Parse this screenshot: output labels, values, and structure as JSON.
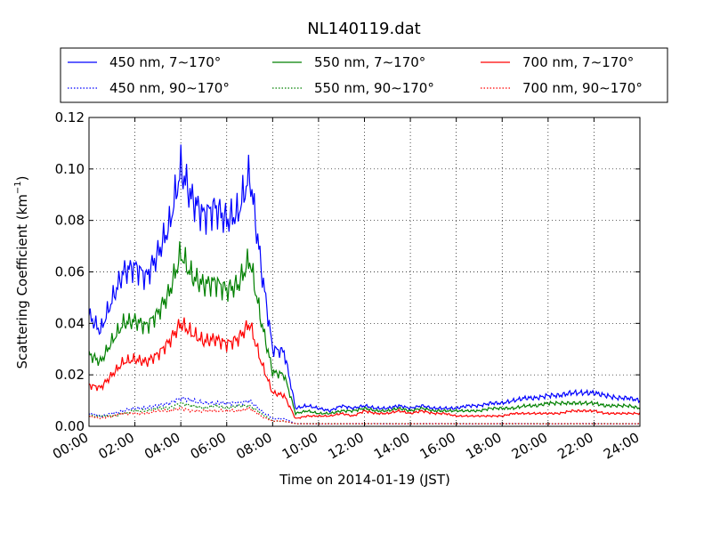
{
  "chart_data": {
    "type": "line",
    "title": "NL140119.dat",
    "xlabel": "Time on 2014-01-19 (JST)",
    "ylabel": "Scattering Coefficient (km",
    "ylabel_sup": "−1",
    "ylabel_close": ")",
    "xlim": [
      0,
      24
    ],
    "ylim": [
      0,
      0.12
    ],
    "grid": true,
    "legend_placement": "top",
    "x_ticks": [
      0,
      2,
      4,
      6,
      8,
      10,
      12,
      14,
      16,
      18,
      20,
      22,
      24
    ],
    "x_tick_labels": [
      "00:00",
      "02:00",
      "04:00",
      "06:00",
      "08:00",
      "10:00",
      "12:00",
      "14:00",
      "16:00",
      "18:00",
      "20:00",
      "22:00",
      "24:00"
    ],
    "y_ticks": [
      0,
      0.02,
      0.04,
      0.06,
      0.08,
      0.1,
      0.12
    ],
    "y_tick_labels": [
      "0.00",
      "0.02",
      "0.04",
      "0.06",
      "0.08",
      "0.10",
      "0.12"
    ],
    "x": [
      0,
      0.5,
      1,
      1.5,
      2,
      2.5,
      3,
      3.5,
      4,
      4.5,
      5,
      5.5,
      6,
      6.5,
      7,
      7.5,
      8,
      8.5,
      9,
      9.5,
      10,
      10.5,
      11,
      11.5,
      12,
      12.5,
      13,
      13.5,
      14,
      14.5,
      15,
      15.5,
      16,
      16.5,
      17,
      17.5,
      18,
      18.5,
      19,
      19.5,
      20,
      20.5,
      21,
      21.5,
      22,
      22.5,
      23,
      23.5,
      24
    ],
    "series": [
      {
        "name": "450 nm, 7∼170°",
        "color": "#0000ff",
        "style": "solid",
        "values": [
          0.043,
          0.037,
          0.049,
          0.06,
          0.062,
          0.058,
          0.067,
          0.078,
          0.1,
          0.088,
          0.082,
          0.085,
          0.08,
          0.083,
          0.098,
          0.062,
          0.03,
          0.029,
          0.007,
          0.008,
          0.007,
          0.006,
          0.008,
          0.007,
          0.008,
          0.007,
          0.007,
          0.008,
          0.007,
          0.008,
          0.007,
          0.007,
          0.007,
          0.008,
          0.008,
          0.009,
          0.009,
          0.01,
          0.011,
          0.011,
          0.012,
          0.012,
          0.013,
          0.013,
          0.013,
          0.012,
          0.011,
          0.011,
          0.01
        ]
      },
      {
        "name": "550 nm, 7∼170°",
        "color": "#008000",
        "style": "solid",
        "values": [
          0.028,
          0.025,
          0.033,
          0.04,
          0.041,
          0.039,
          0.044,
          0.052,
          0.067,
          0.058,
          0.055,
          0.056,
          0.053,
          0.055,
          0.065,
          0.041,
          0.021,
          0.02,
          0.005,
          0.006,
          0.005,
          0.005,
          0.006,
          0.006,
          0.007,
          0.006,
          0.006,
          0.007,
          0.006,
          0.007,
          0.006,
          0.006,
          0.006,
          0.006,
          0.006,
          0.007,
          0.007,
          0.007,
          0.008,
          0.008,
          0.009,
          0.009,
          0.009,
          0.009,
          0.009,
          0.008,
          0.008,
          0.008,
          0.007
        ]
      },
      {
        "name": "700 nm, 7∼170°",
        "color": "#ff0000",
        "style": "solid",
        "values": [
          0.016,
          0.015,
          0.02,
          0.025,
          0.026,
          0.025,
          0.028,
          0.033,
          0.04,
          0.036,
          0.033,
          0.034,
          0.032,
          0.034,
          0.04,
          0.025,
          0.013,
          0.012,
          0.003,
          0.004,
          0.004,
          0.004,
          0.005,
          0.004,
          0.006,
          0.005,
          0.005,
          0.006,
          0.005,
          0.006,
          0.005,
          0.005,
          0.004,
          0.004,
          0.004,
          0.004,
          0.004,
          0.005,
          0.005,
          0.005,
          0.005,
          0.005,
          0.006,
          0.006,
          0.006,
          0.005,
          0.005,
          0.005,
          0.005
        ]
      },
      {
        "name": "450 nm, 90∼170°",
        "color": "#0000ff",
        "style": "dotted",
        "values": [
          0.005,
          0.004,
          0.005,
          0.006,
          0.007,
          0.007,
          0.008,
          0.009,
          0.011,
          0.01,
          0.009,
          0.009,
          0.009,
          0.009,
          0.01,
          0.006,
          0.003,
          0.003,
          0.001,
          0.001,
          0.001,
          0.001,
          0.001,
          0.001,
          0.001,
          0.001,
          0.001,
          0.001,
          0.001,
          0.001,
          0.001,
          0.001,
          0.001,
          0.001,
          0.001,
          0.001,
          0.001,
          0.001,
          0.001,
          0.001,
          0.001,
          0.001,
          0.001,
          0.001,
          0.001,
          0.001,
          0.001,
          0.001,
          0.001
        ]
      },
      {
        "name": "550 nm, 90∼170°",
        "color": "#008000",
        "style": "dotted",
        "values": [
          0.004,
          0.004,
          0.004,
          0.005,
          0.006,
          0.006,
          0.007,
          0.007,
          0.009,
          0.008,
          0.007,
          0.008,
          0.007,
          0.008,
          0.008,
          0.005,
          0.002,
          0.002,
          0.001,
          0.001,
          0.001,
          0.001,
          0.001,
          0.001,
          0.001,
          0.001,
          0.001,
          0.001,
          0.001,
          0.001,
          0.001,
          0.001,
          0.001,
          0.001,
          0.001,
          0.001,
          0.001,
          0.001,
          0.001,
          0.001,
          0.001,
          0.001,
          0.001,
          0.001,
          0.001,
          0.001,
          0.001,
          0.001,
          0.001
        ]
      },
      {
        "name": "700 nm, 90∼170°",
        "color": "#ff0000",
        "style": "dotted",
        "values": [
          0.004,
          0.003,
          0.004,
          0.005,
          0.005,
          0.005,
          0.006,
          0.006,
          0.007,
          0.006,
          0.006,
          0.006,
          0.006,
          0.006,
          0.007,
          0.004,
          0.002,
          0.002,
          0.001,
          0.001,
          0.001,
          0.001,
          0.001,
          0.001,
          0.001,
          0.001,
          0.001,
          0.001,
          0.001,
          0.001,
          0.001,
          0.001,
          0.001,
          0.001,
          0.001,
          0.001,
          0.001,
          0.001,
          0.001,
          0.001,
          0.001,
          0.001,
          0.001,
          0.001,
          0.001,
          0.001,
          0.001,
          0.001,
          0.001
        ]
      }
    ]
  }
}
